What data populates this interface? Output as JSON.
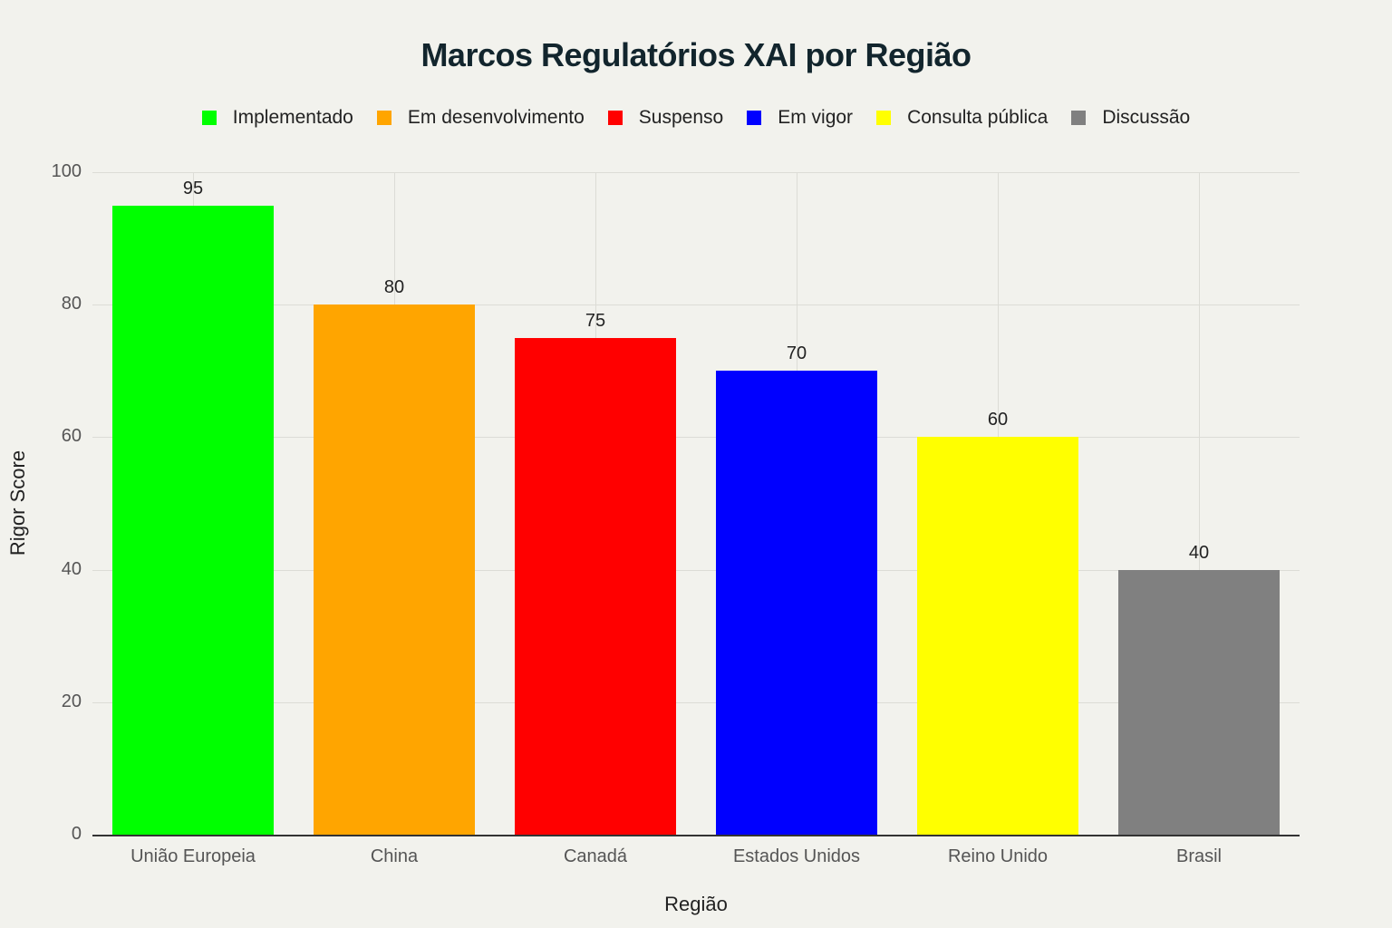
{
  "chart_data": {
    "type": "bar",
    "title": "Marcos Regulatórios XAI por Região",
    "xlabel": "Região",
    "ylabel": "Rigor Score",
    "ylim": [
      0,
      100
    ],
    "yticks": [
      "0",
      "20",
      "40",
      "60",
      "80",
      "100"
    ],
    "categories": [
      "União Europeia",
      "China",
      "Canadá",
      "Estados Unidos",
      "Reino Unido",
      "Brasil"
    ],
    "values": [
      95,
      80,
      75,
      70,
      60,
      40
    ],
    "status": [
      "Implementado",
      "Em desenvolvimento",
      "Suspenso",
      "Em vigor",
      "Consulta pública",
      "Discussão"
    ],
    "colors": [
      "#00ff00",
      "#ffa500",
      "#ff0000",
      "#0000ff",
      "#ffff00",
      "#808080"
    ],
    "legend": [
      {
        "label": "Implementado",
        "color": "#00ff00"
      },
      {
        "label": "Em desenvolvimento",
        "color": "#ffa500"
      },
      {
        "label": "Suspenso",
        "color": "#ff0000"
      },
      {
        "label": "Em vigor",
        "color": "#0000ff"
      },
      {
        "label": "Consulta pública",
        "color": "#ffff00"
      },
      {
        "label": "Discussão",
        "color": "#808080"
      }
    ],
    "legend_position": "top",
    "grid": true
  }
}
